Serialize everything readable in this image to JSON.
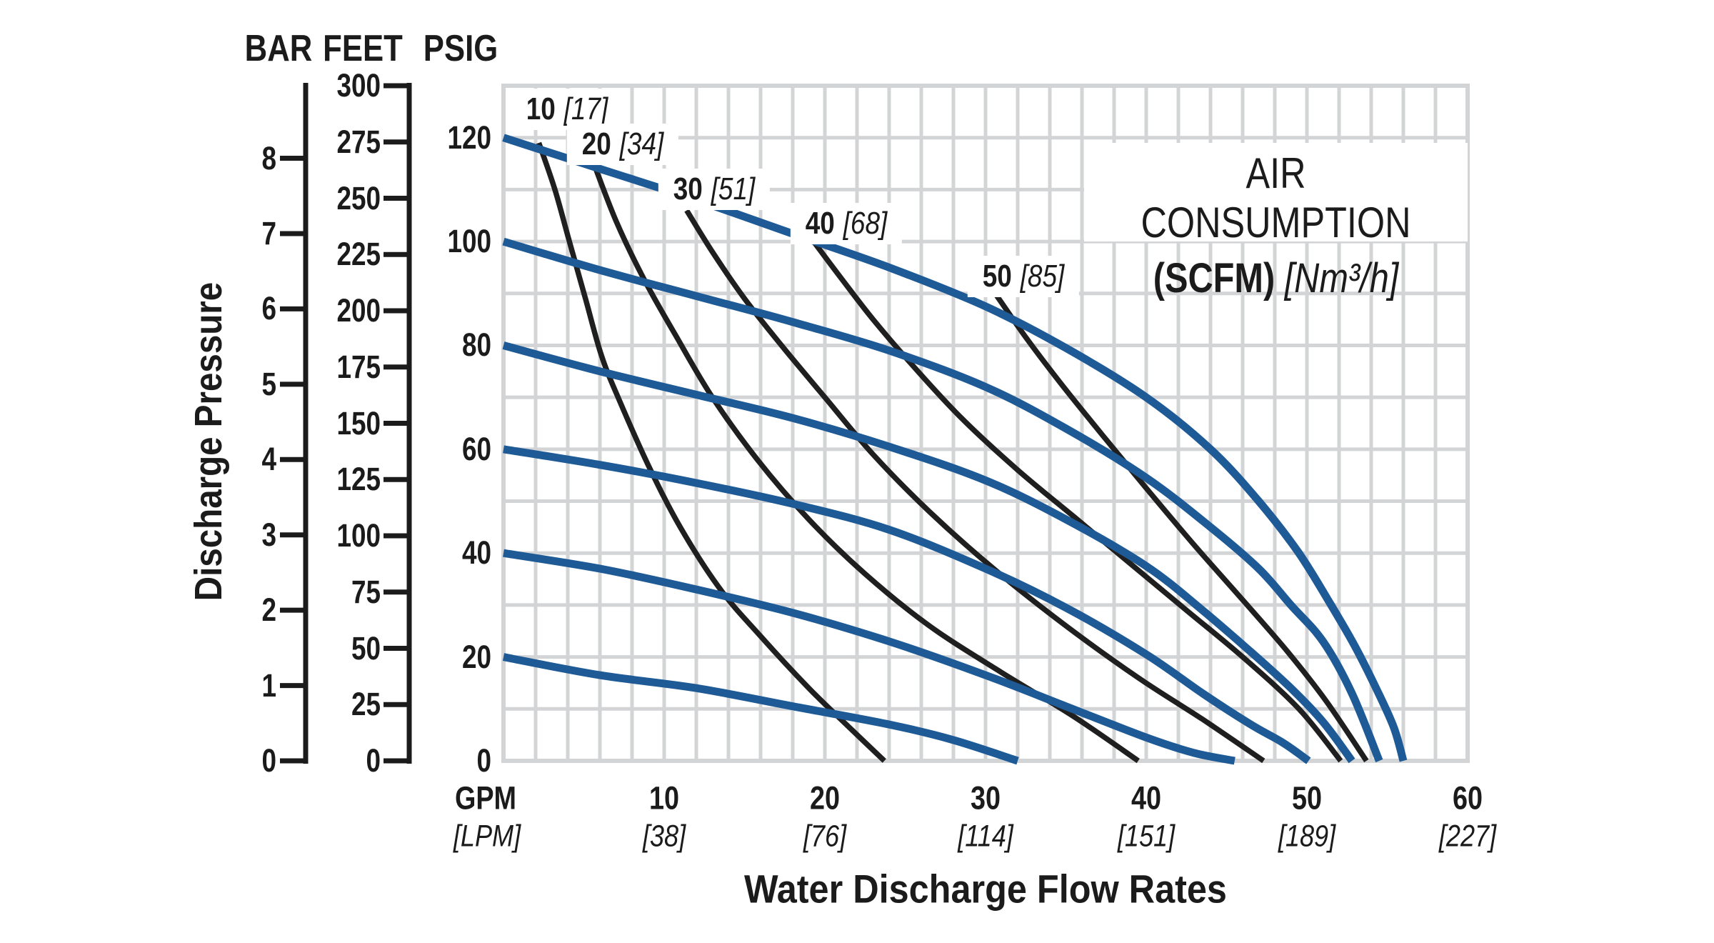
{
  "figure": {
    "pressure_axis_headers": [
      {
        "id": "bar",
        "label": "BAR"
      },
      {
        "id": "feet",
        "label": "FEET"
      },
      {
        "id": "psig",
        "label": "PSIG"
      }
    ],
    "y_axis_title": "Discharge Pressure",
    "x_axis_title": "Water Discharge Flow Rates",
    "x_unit_primary": "GPM",
    "x_unit_metric": "[LPM]",
    "legend": {
      "title": "AIR CONSUMPTION",
      "unit_primary": "(SCFM)",
      "unit_metric": "[Nm³/h]"
    }
  },
  "chart_data": {
    "type": "line",
    "title": "Pump performance: discharge pressure vs water discharge flow rate",
    "xlabel": "Water Discharge Flow Rates",
    "ylabel": "Discharge Pressure",
    "x_axis": {
      "unit": "GPM",
      "metric_unit": "[LPM]",
      "range_gpm": [
        0,
        60
      ],
      "minor_gridline_step_gpm": 2,
      "ticks": [
        {
          "gpm": "10",
          "lpm": "[38]"
        },
        {
          "gpm": "20",
          "lpm": "[76]"
        },
        {
          "gpm": "30",
          "lpm": "[114]"
        },
        {
          "gpm": "40",
          "lpm": "[151]"
        },
        {
          "gpm": "50",
          "lpm": "[189]"
        },
        {
          "gpm": "60",
          "lpm": "[227]"
        }
      ]
    },
    "y_axis": {
      "range_psig": [
        0,
        130
      ],
      "gridline_step_psig": 10,
      "psig_ticks": [
        0,
        20,
        40,
        60,
        80,
        100,
        120
      ],
      "feet_ticks": [
        0,
        25,
        50,
        75,
        100,
        125,
        150,
        175,
        200,
        225,
        250,
        275,
        300
      ],
      "bar_ticks": [
        0,
        1,
        2,
        3,
        4,
        5,
        6,
        7,
        8
      ],
      "psi_per_bar": 14.5038,
      "psi_per_foot": 0.433333
    },
    "legend_position": "top-right",
    "grid": true,
    "series": [
      {
        "name": "performance-120psig",
        "start_psig": 120,
        "max_gpm": 56,
        "points": [
          [
            0,
            120
          ],
          [
            6,
            114
          ],
          [
            12,
            108
          ],
          [
            18,
            101.5
          ],
          [
            24,
            95
          ],
          [
            30,
            87.5
          ],
          [
            35,
            79.5
          ],
          [
            40,
            70
          ],
          [
            44,
            60
          ],
          [
            47,
            50
          ],
          [
            49.5,
            40
          ],
          [
            51.5,
            30
          ],
          [
            53,
            22
          ],
          [
            54.3,
            14
          ],
          [
            55.4,
            6.5
          ],
          [
            56,
            0
          ]
        ]
      },
      {
        "name": "performance-100psig",
        "start_psig": 100,
        "max_gpm": 54.5,
        "points": [
          [
            0,
            100
          ],
          [
            6,
            94.5
          ],
          [
            12,
            89.5
          ],
          [
            18,
            84.5
          ],
          [
            24,
            79
          ],
          [
            30,
            72
          ],
          [
            35,
            64
          ],
          [
            40,
            54.5
          ],
          [
            44,
            45
          ],
          [
            47,
            37
          ],
          [
            49,
            30
          ],
          [
            51,
            23
          ],
          [
            52.8,
            13
          ],
          [
            54.5,
            0
          ]
        ]
      },
      {
        "name": "performance-80psig",
        "start_psig": 80,
        "max_gpm": 52.8,
        "points": [
          [
            0,
            80
          ],
          [
            6,
            75
          ],
          [
            12,
            70.5
          ],
          [
            18,
            66
          ],
          [
            24,
            60.5
          ],
          [
            30,
            54
          ],
          [
            35,
            46.5
          ],
          [
            40,
            37.5
          ],
          [
            43.5,
            29
          ],
          [
            46.5,
            21
          ],
          [
            49,
            14
          ],
          [
            51,
            7.5
          ],
          [
            52.8,
            0
          ]
        ]
      },
      {
        "name": "performance-60psig",
        "start_psig": 60,
        "max_gpm": 50.1,
        "points": [
          [
            0,
            60
          ],
          [
            6,
            57
          ],
          [
            12,
            53.5
          ],
          [
            18,
            49.5
          ],
          [
            24,
            44.5
          ],
          [
            30,
            37
          ],
          [
            35,
            29.5
          ],
          [
            40,
            20.5
          ],
          [
            43.5,
            13
          ],
          [
            46.5,
            7
          ],
          [
            48.5,
            3.5
          ],
          [
            50.1,
            0
          ]
        ]
      },
      {
        "name": "performance-40psig",
        "start_psig": 40,
        "max_gpm": 45.5,
        "points": [
          [
            0,
            40
          ],
          [
            6,
            37
          ],
          [
            12,
            33
          ],
          [
            18,
            28.5
          ],
          [
            24,
            23
          ],
          [
            30,
            16.5
          ],
          [
            35,
            10.5
          ],
          [
            40,
            4.5
          ],
          [
            43,
            1.5
          ],
          [
            45.5,
            0
          ]
        ]
      },
      {
        "name": "performance-20psig",
        "start_psig": 20,
        "max_gpm": 32,
        "points": [
          [
            0,
            20
          ],
          [
            6,
            16.5
          ],
          [
            12,
            14
          ],
          [
            18,
            10.5
          ],
          [
            24,
            7
          ],
          [
            28,
            4
          ],
          [
            32,
            0
          ]
        ]
      }
    ],
    "air_consumption_curves": [
      {
        "scfm": "10",
        "metric": "[17]",
        "label_center": [
          794,
          153
        ],
        "points": [
          [
            2.2,
            119
          ],
          [
            3.2,
            110
          ],
          [
            4.1,
            100
          ],
          [
            5.1,
            89
          ],
          [
            6.1,
            78
          ],
          [
            7.2,
            69.5
          ],
          [
            9,
            57
          ],
          [
            11,
            45
          ],
          [
            13.5,
            33
          ],
          [
            16,
            24
          ],
          [
            19,
            14
          ],
          [
            21.5,
            6.5
          ],
          [
            23.7,
            0
          ]
        ]
      },
      {
        "scfm": "20",
        "metric": "[34]",
        "label_center": [
          872,
          202
        ],
        "points": [
          [
            5.5,
            116
          ],
          [
            7,
            104
          ],
          [
            8.7,
            93
          ],
          [
            10.7,
            82
          ],
          [
            13,
            70
          ],
          [
            15.8,
            58
          ],
          [
            19,
            46.5
          ],
          [
            22.5,
            36
          ],
          [
            26.5,
            26
          ],
          [
            31,
            17
          ],
          [
            35.5,
            8.5
          ],
          [
            39.5,
            0
          ]
        ]
      },
      {
        "scfm": "30",
        "metric": "[51]",
        "label_center": [
          1000,
          265
        ],
        "points": [
          [
            11.4,
            106
          ],
          [
            13,
            98
          ],
          [
            15,
            89
          ],
          [
            17.3,
            80
          ],
          [
            20,
            70
          ],
          [
            23,
            59
          ],
          [
            26.5,
            48
          ],
          [
            30.5,
            37
          ],
          [
            35,
            26
          ],
          [
            39.5,
            16
          ],
          [
            43.5,
            8
          ],
          [
            47.3,
            0
          ]
        ]
      },
      {
        "scfm": "40",
        "metric": "[68]",
        "label_center": [
          1185,
          313
        ],
        "points": [
          [
            19.3,
            100
          ],
          [
            21,
            93
          ],
          [
            23,
            85
          ],
          [
            25.5,
            76
          ],
          [
            28.5,
            66
          ],
          [
            32,
            56
          ],
          [
            35.5,
            47
          ],
          [
            39,
            38
          ],
          [
            42.5,
            29
          ],
          [
            46,
            20
          ],
          [
            49.5,
            10
          ],
          [
            52.1,
            0
          ]
        ]
      },
      {
        "scfm": "50",
        "metric": "[85]",
        "label_center": [
          1433,
          387
        ],
        "points": [
          [
            30.6,
            90
          ],
          [
            32.4,
            82
          ],
          [
            34.6,
            73
          ],
          [
            37.2,
            63
          ],
          [
            40,
            52.5
          ],
          [
            43,
            41.5
          ],
          [
            46,
            31
          ],
          [
            48.8,
            21
          ],
          [
            51.2,
            11.5
          ],
          [
            53.7,
            0
          ]
        ]
      }
    ],
    "colors": {
      "performance_curve": "#1d5a96",
      "air_curve": "#1f1f1f",
      "grid": "#d3d4d6",
      "text": "#1b1b1b",
      "label_background": "#ffffff"
    }
  }
}
